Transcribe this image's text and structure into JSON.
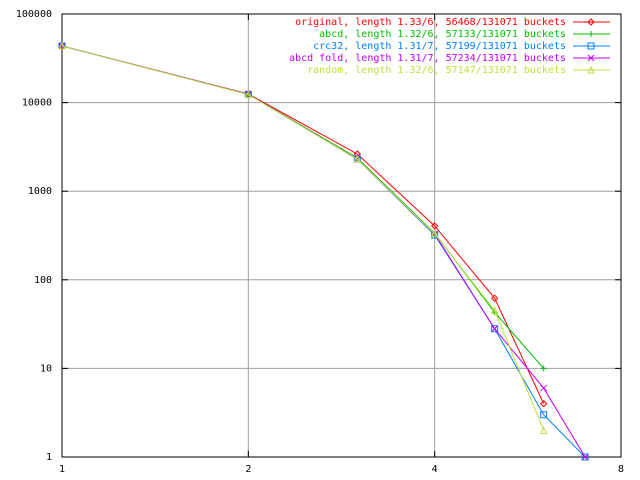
{
  "chart_data": {
    "type": "line",
    "xscale": "log",
    "yscale": "log",
    "grid": true,
    "legend": "top-right",
    "x": [
      1,
      2,
      3,
      4,
      5,
      6,
      7
    ],
    "xlim": [
      1,
      8
    ],
    "xticks": [
      1,
      2,
      4,
      8
    ],
    "ylim": [
      1,
      100000
    ],
    "yticks": [
      1,
      10,
      100,
      1000,
      10000,
      100000
    ],
    "series": [
      {
        "name": "original, length 1.33/6, 56468/131071 buckets",
        "color": "#ff0000",
        "marker": "diamond",
        "values": [
          43600,
          12500,
          2630,
          405,
          62,
          4,
          null
        ]
      },
      {
        "name": "abcd, length 1.32/6, 57133/131071 buckets",
        "color": "#00c000",
        "marker": "plus",
        "values": [
          43500,
          12400,
          2370,
          336,
          43,
          10,
          null
        ]
      },
      {
        "name": "crc32, length 1.31/7, 57199/131071 buckets",
        "color": "#0080ff",
        "marker": "square",
        "values": [
          43500,
          12400,
          2300,
          320,
          28,
          3,
          1
        ]
      },
      {
        "name": "abcd fold, length 1.31/7, 57234/131071 buckets",
        "color": "#c000ff",
        "marker": "cross",
        "values": [
          43500,
          12400,
          2300,
          330,
          28,
          6,
          1
        ]
      },
      {
        "name": "random, length 1.32/6, 57147/131071 buckets",
        "color": "#c0e040",
        "marker": "triangle",
        "values": [
          43500,
          12300,
          2300,
          330,
          45,
          2,
          null
        ]
      }
    ]
  }
}
